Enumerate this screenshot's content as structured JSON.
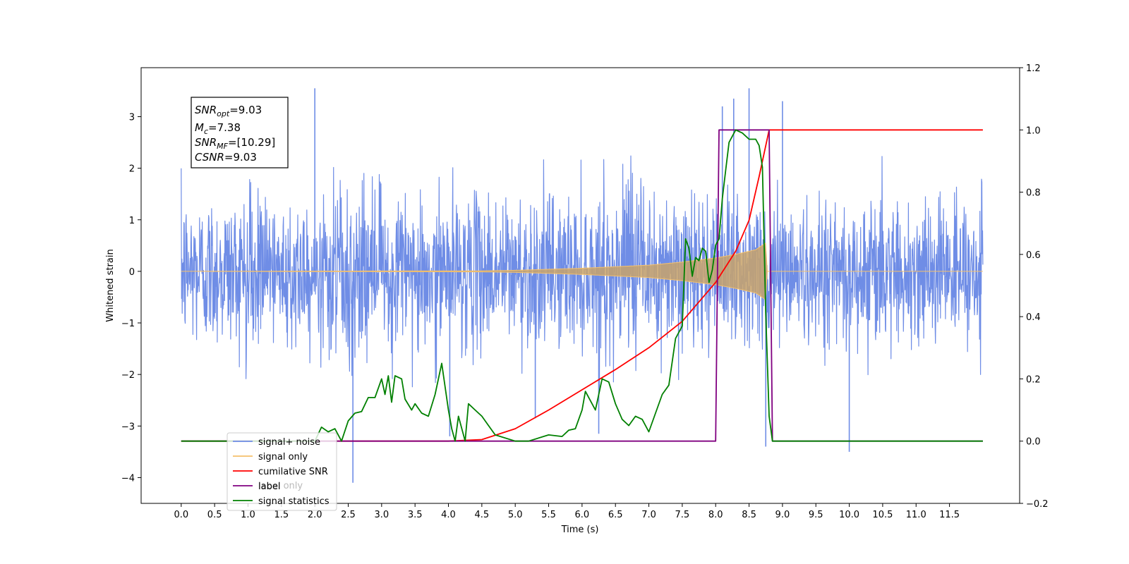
{
  "chart_data": {
    "type": "line",
    "xlabel": "Time (s)",
    "ylabel_left": "Whitened strain",
    "ylabel_right": "",
    "xlim": [
      -0.6,
      12.55
    ],
    "ylim_left": [
      -4.5,
      3.95
    ],
    "ylim_right": [
      -0.2,
      1.2
    ],
    "x_ticks": [
      "0.0",
      "0.5",
      "1.0",
      "1.5",
      "2.0",
      "2.5",
      "3.0",
      "3.5",
      "4.0",
      "4.5",
      "5.0",
      "5.5",
      "6.0",
      "6.5",
      "7.0",
      "7.5",
      "8.0",
      "8.5",
      "9.0",
      "9.5",
      "10.0",
      "10.5",
      "11.0",
      "11.5"
    ],
    "y_ticks_left": [
      "−4",
      "−3",
      "−2",
      "−1",
      "0",
      "1",
      "2",
      "3"
    ],
    "y_ticks_right": [
      "−0.2",
      "0.0",
      "0.2",
      "0.4",
      "0.6",
      "0.8",
      "1.0",
      "1.2"
    ],
    "grid": false,
    "annotation": {
      "lines": [
        {
          "sym": "SNR",
          "sub": "opt",
          "rest": "=9.03"
        },
        {
          "sym": "M",
          "sub": "c",
          "rest": "=7.38"
        },
        {
          "sym": "SNR",
          "sub": "MF",
          "rest": "=[10.29]"
        },
        {
          "sym": "CSNR",
          "sub": "",
          "rest": "=9.03"
        }
      ]
    },
    "legend": {
      "placement": "lower-left",
      "entries": [
        {
          "label": "signal+ noise",
          "color": "#6f8de6"
        },
        {
          "label": "signal only",
          "color": "#f5c16c"
        },
        {
          "label": "cumilative SNR",
          "color": "#ff0000"
        },
        {
          "label": "label",
          "color": "#800080"
        },
        {
          "label": "signal statistics",
          "color": "#008000"
        }
      ],
      "hidden_text": "label only"
    },
    "series": [
      {
        "name": "signal+ noise",
        "axis": "left",
        "color": "#6f8de6",
        "x_range": [
          0.0,
          12.0
        ],
        "typical_amplitude": 1.7,
        "spikes": [
          [
            2.0,
            3.55
          ],
          [
            2.57,
            -4.1
          ],
          [
            4.02,
            -3.2
          ],
          [
            8.1,
            3.2
          ],
          [
            8.5,
            3.55
          ],
          [
            8.27,
            3.35
          ],
          [
            8.75,
            -3.4
          ],
          [
            9.0,
            3.3
          ],
          [
            10.0,
            -3.5
          ],
          [
            6.25,
            -3.15
          ],
          [
            5.3,
            -2.85
          ]
        ]
      },
      {
        "name": "signal only",
        "axis": "left",
        "color": "#f5c16c",
        "x_range": [
          0.0,
          12.0
        ],
        "envelope": {
          "x": [
            0.0,
            4.5,
            5.0,
            6.0,
            7.0,
            7.5,
            8.0,
            8.3,
            8.6,
            8.75,
            8.77,
            12.0
          ],
          "amp": [
            0.0,
            0.01,
            0.02,
            0.06,
            0.12,
            0.18,
            0.26,
            0.33,
            0.42,
            0.55,
            0.0,
            0.0
          ]
        }
      },
      {
        "name": "cumilative SNR",
        "axis": "right",
        "color": "#ff0000",
        "x": [
          0.0,
          4.0,
          4.5,
          5.0,
          5.5,
          6.0,
          6.5,
          7.0,
          7.5,
          8.0,
          8.3,
          8.5,
          8.65,
          8.8,
          12.0
        ],
        "y": [
          0.0,
          0.0,
          0.005,
          0.04,
          0.1,
          0.165,
          0.23,
          0.3,
          0.385,
          0.51,
          0.61,
          0.71,
          0.85,
          1.0,
          1.0
        ]
      },
      {
        "name": "label",
        "axis": "right",
        "color": "#800080",
        "x": [
          0.0,
          8.0,
          8.05,
          8.8,
          8.85,
          12.0
        ],
        "y": [
          0.0,
          0.0,
          1.0,
          1.0,
          0.0,
          0.0
        ]
      },
      {
        "name": "signal statistics",
        "axis": "right",
        "color": "#008000",
        "x": [
          0.0,
          2.0,
          2.1,
          2.2,
          2.3,
          2.4,
          2.5,
          2.6,
          2.7,
          2.8,
          2.9,
          3.0,
          3.05,
          3.1,
          3.15,
          3.2,
          3.3,
          3.35,
          3.45,
          3.5,
          3.6,
          3.7,
          3.8,
          3.9,
          4.0,
          4.05,
          4.1,
          4.15,
          4.25,
          4.3,
          4.4,
          4.5,
          4.6,
          4.7,
          5.0,
          5.2,
          5.5,
          5.7,
          5.8,
          5.9,
          6.0,
          6.05,
          6.2,
          6.3,
          6.4,
          6.5,
          6.6,
          6.7,
          6.8,
          6.9,
          7.0,
          7.1,
          7.2,
          7.3,
          7.4,
          7.5,
          7.55,
          7.6,
          7.65,
          7.7,
          7.75,
          7.8,
          7.85,
          7.9,
          7.95,
          8.0,
          8.05,
          8.1,
          8.15,
          8.2,
          8.3,
          8.4,
          8.5,
          8.6,
          8.65,
          8.7,
          8.75,
          8.8,
          8.85,
          8.9,
          9.0,
          12.0
        ],
        "y": [
          0.0,
          0.0,
          0.045,
          0.03,
          0.04,
          0.0,
          0.065,
          0.09,
          0.095,
          0.14,
          0.14,
          0.2,
          0.15,
          0.21,
          0.125,
          0.21,
          0.2,
          0.135,
          0.1,
          0.12,
          0.09,
          0.08,
          0.15,
          0.25,
          0.1,
          0.04,
          0.0,
          0.08,
          0.0,
          0.12,
          0.1,
          0.08,
          0.05,
          0.02,
          0.0,
          0.0,
          0.02,
          0.015,
          0.035,
          0.04,
          0.1,
          0.16,
          0.1,
          0.2,
          0.19,
          0.12,
          0.07,
          0.05,
          0.08,
          0.07,
          0.03,
          0.09,
          0.15,
          0.18,
          0.33,
          0.37,
          0.65,
          0.62,
          0.53,
          0.59,
          0.58,
          0.62,
          0.61,
          0.51,
          0.55,
          0.63,
          0.65,
          0.78,
          0.87,
          0.96,
          1.0,
          0.99,
          0.97,
          0.97,
          0.95,
          0.88,
          0.41,
          0.08,
          0.0,
          0.0,
          0.0,
          0.0
        ]
      }
    ]
  }
}
